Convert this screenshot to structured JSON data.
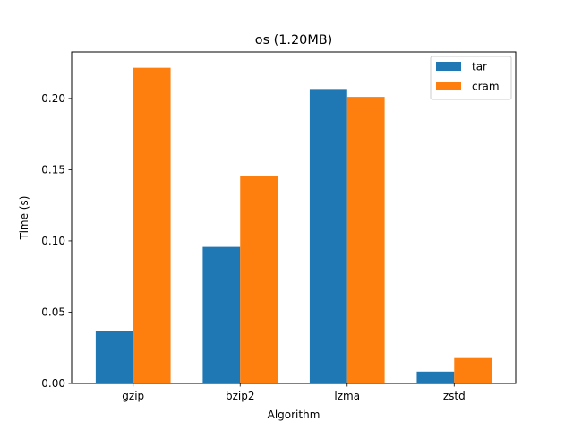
{
  "chart_data": {
    "type": "bar",
    "title": "os (1.20MB)",
    "xlabel": "Algorithm",
    "ylabel": "Time (s)",
    "categories": [
      "gzip",
      "bzip2",
      "lzma",
      "zstd"
    ],
    "series": [
      {
        "name": "tar",
        "color": "#1f77b4",
        "values": [
          0.0367,
          0.0958,
          0.2066,
          0.0083
        ]
      },
      {
        "name": "cram",
        "color": "#ff7f0e",
        "values": [
          0.2215,
          0.1457,
          0.2011,
          0.0178
        ]
      }
    ],
    "ylim": [
      0,
      0.2326
    ],
    "yticks": [
      0.0,
      0.05,
      0.1,
      0.15,
      0.2
    ],
    "ytick_labels": [
      "0.00",
      "0.05",
      "0.10",
      "0.15",
      "0.20"
    ],
    "grid": false,
    "legend_position": "top-right"
  }
}
